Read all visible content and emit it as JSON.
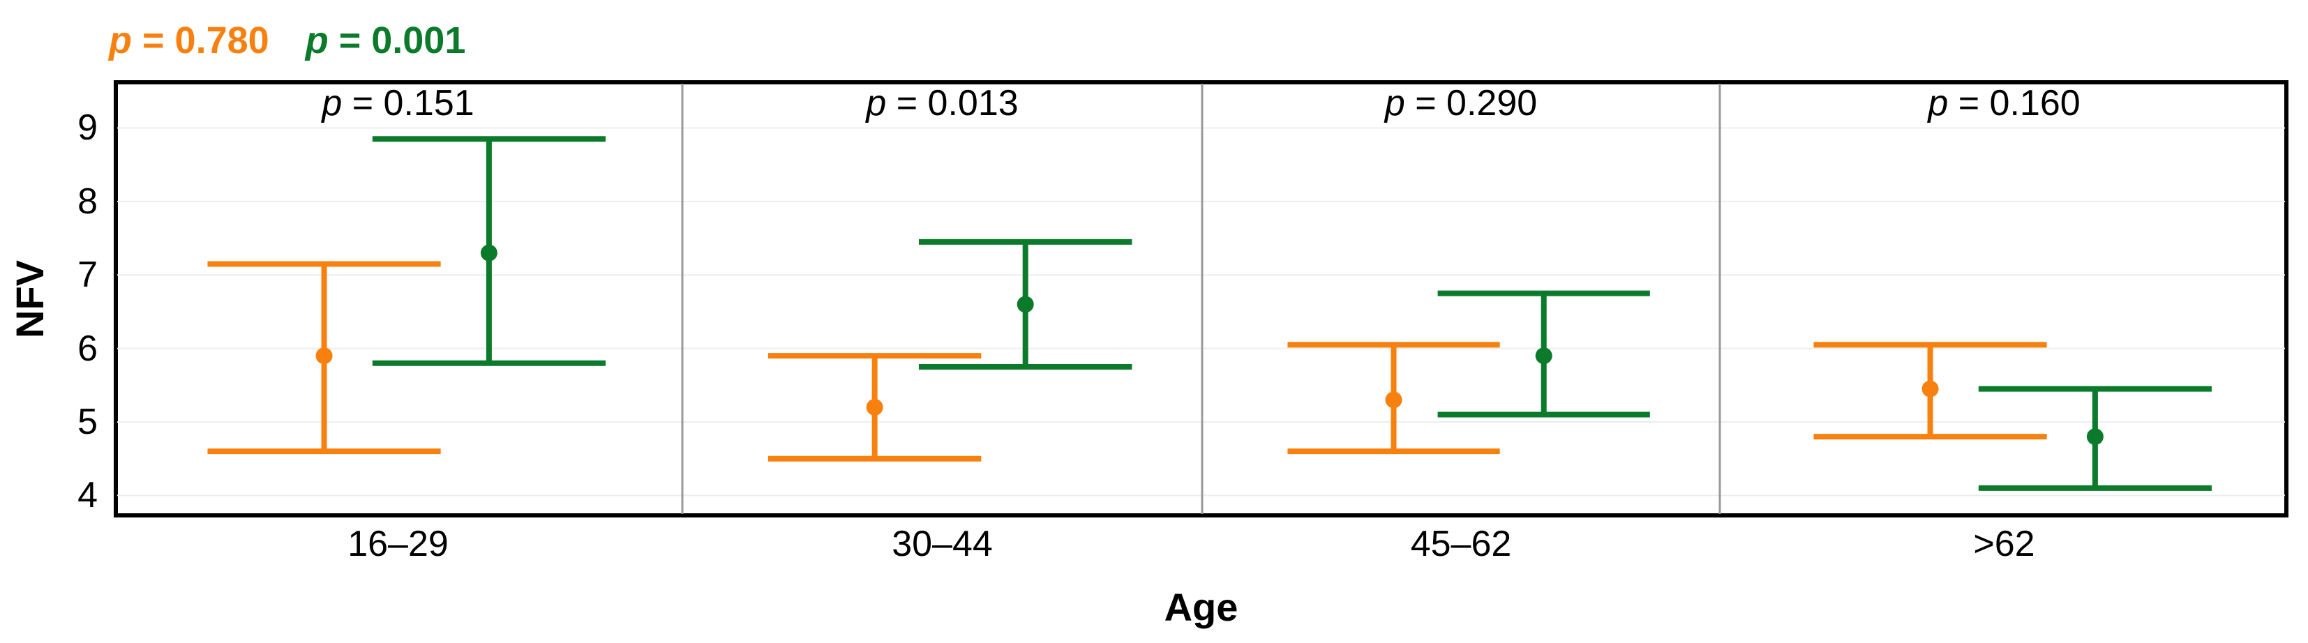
{
  "figure": {
    "y_axis_label": "NFV",
    "x_axis_label": "Age"
  },
  "header": {
    "series_p_values": [
      {
        "label": "p = 0.780",
        "color": "#F8800E"
      },
      {
        "label": "p = 0.001",
        "color": "#0B7A2B"
      }
    ]
  },
  "chart_data": {
    "type": "errorbar",
    "title": "",
    "xlabel": "Age",
    "ylabel": "NFV",
    "categories": [
      "16–29",
      "30–44",
      "45–62",
      ">62"
    ],
    "panel_p_labels": [
      "p = 0.151",
      "p = 0.013",
      "p = 0.290",
      "p = 0.160"
    ],
    "y_ticks": [
      9,
      8,
      7,
      6,
      5,
      4
    ],
    "ylim": [
      3.7,
      9.65
    ],
    "grid": "horizontal-light",
    "legend_position": "top-left",
    "colors": {
      "gridline": "#EDEDED",
      "panel_divider": "#999999",
      "plot_border": "#000000"
    },
    "series": [
      {
        "name": "orange group",
        "p_value_label": "p = 0.780",
        "color": "#F8800E",
        "means": [
          5.9,
          5.2,
          5.3,
          5.45
        ],
        "lower": [
          4.6,
          4.5,
          4.6,
          4.8
        ],
        "upper": [
          7.15,
          5.9,
          6.05,
          6.05
        ]
      },
      {
        "name": "green group",
        "p_value_label": "p = 0.001",
        "color": "#0B7A2B",
        "means": [
          7.3,
          6.6,
          5.9,
          4.8
        ],
        "lower": [
          5.8,
          5.75,
          5.1,
          4.1
        ],
        "upper": [
          8.85,
          7.45,
          6.75,
          5.45
        ]
      }
    ]
  }
}
